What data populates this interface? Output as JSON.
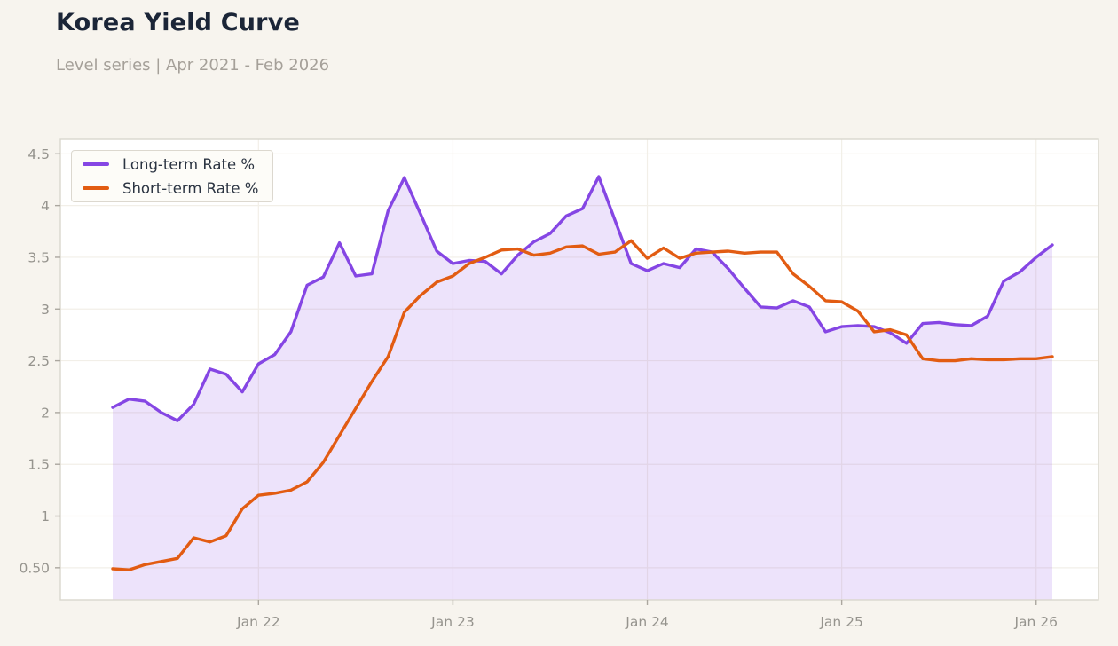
{
  "header": {
    "title": "Korea Yield Curve",
    "subtitle": "Level series | Apr 2021 - Feb 2026"
  },
  "legend": {
    "items": [
      {
        "label": "Long-term Rate %",
        "color": "#8546E4"
      },
      {
        "label": "Short-term Rate %",
        "color": "#E25C12"
      }
    ]
  },
  "chart_data": {
    "type": "line",
    "title": "Korea Yield Curve",
    "subtitle": "Level series | Apr 2021 - Feb 2026",
    "x": [
      "Apr 21",
      "May 21",
      "Jun 21",
      "Jul 21",
      "Aug 21",
      "Sep 21",
      "Oct 21",
      "Nov 21",
      "Dec 21",
      "Jan 22",
      "Feb 22",
      "Mar 22",
      "Apr 22",
      "May 22",
      "Jun 22",
      "Jul 22",
      "Aug 22",
      "Sep 22",
      "Oct 22",
      "Nov 22",
      "Dec 22",
      "Jan 23",
      "Feb 23",
      "Mar 23",
      "Apr 23",
      "May 23",
      "Jun 23",
      "Jul 23",
      "Aug 23",
      "Sep 23",
      "Oct 23",
      "Nov 23",
      "Dec 23",
      "Jan 24",
      "Feb 24",
      "Mar 24",
      "Apr 24",
      "May 24",
      "Jun 24",
      "Jul 24",
      "Aug 24",
      "Sep 24",
      "Oct 24",
      "Nov 24",
      "Dec 24",
      "Jan 25",
      "Feb 25",
      "Mar 25",
      "Apr 25",
      "May 25",
      "Jun 25",
      "Jul 25",
      "Aug 25",
      "Sep 25",
      "Oct 25",
      "Nov 25",
      "Dec 25",
      "Jan 26",
      "Feb 26"
    ],
    "series": [
      {
        "name": "Long-term Rate %",
        "color": "#8546E4",
        "area": true,
        "values": [
          2.05,
          2.13,
          2.11,
          2.0,
          1.92,
          2.08,
          2.42,
          2.37,
          2.2,
          2.47,
          2.56,
          2.78,
          3.23,
          3.31,
          3.64,
          3.32,
          3.34,
          3.95,
          4.27,
          3.92,
          3.56,
          3.44,
          3.47,
          3.46,
          3.34,
          3.52,
          3.65,
          3.73,
          3.9,
          3.97,
          4.28,
          3.86,
          3.44,
          3.37,
          3.44,
          3.4,
          3.58,
          3.55,
          3.39,
          3.2,
          3.02,
          3.01,
          3.08,
          3.02,
          2.78,
          2.83,
          2.84,
          2.83,
          2.77,
          2.67,
          2.86,
          2.87,
          2.85,
          2.84,
          2.93,
          3.27,
          3.36,
          3.5,
          3.62
        ]
      },
      {
        "name": "Short-term Rate %",
        "color": "#E25C12",
        "area": false,
        "values": [
          0.49,
          0.48,
          0.53,
          0.56,
          0.59,
          0.79,
          0.75,
          0.81,
          1.07,
          1.2,
          1.22,
          1.25,
          1.33,
          1.52,
          1.78,
          2.04,
          2.3,
          2.54,
          2.97,
          3.13,
          3.26,
          3.32,
          3.44,
          3.5,
          3.57,
          3.58,
          3.52,
          3.54,
          3.6,
          3.61,
          3.53,
          3.55,
          3.66,
          3.49,
          3.59,
          3.49,
          3.54,
          3.55,
          3.56,
          3.54,
          3.55,
          3.55,
          3.34,
          3.22,
          3.08,
          3.07,
          2.98,
          2.78,
          2.8,
          2.75,
          2.52,
          2.5,
          2.5,
          2.52,
          2.51,
          2.51,
          2.52,
          2.52,
          2.54
        ]
      }
    ],
    "xticks": {
      "labels": [
        "Jan 22",
        "Jan 23",
        "Jan 24",
        "Jan 25",
        "Jan 26"
      ],
      "indices": [
        9,
        21,
        33,
        45,
        57
      ]
    },
    "yticks": {
      "labels": [
        "0.50",
        "1",
        "1.5",
        "2",
        "2.5",
        "3",
        "3.5",
        "4",
        "4.5"
      ],
      "values": [
        0.5,
        1,
        1.5,
        2,
        2.5,
        3,
        3.5,
        4,
        4.5
      ]
    },
    "ylim": [
      0.19,
      4.64
    ],
    "grid": true,
    "legend_position": "top-left",
    "xlabel": "",
    "ylabel": ""
  },
  "colors": {
    "page_bg": "#F7F4EE",
    "plot_bg": "#FFFFFF",
    "grid": "#F2EFE8",
    "plot_border": "#DAD7CE",
    "tick": "#ABA79F",
    "axis_text": "#96948E",
    "title_text": "#1B2537",
    "subtitle_text": "#A5A099",
    "area_fill_opacity": 0.15
  }
}
